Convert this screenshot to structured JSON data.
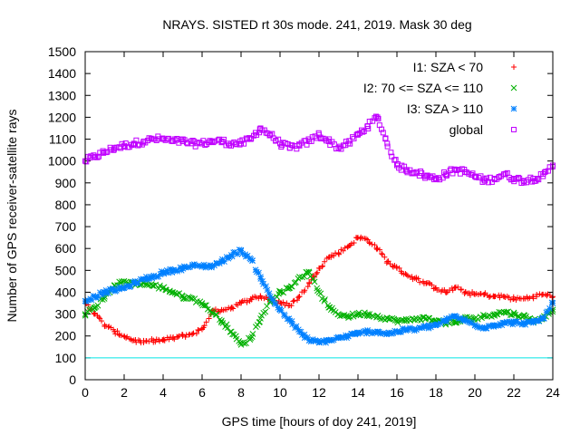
{
  "chart_data": {
    "type": "scatter",
    "title": "NRAYS. SISTED rt 30s mode. 241, 2019. Mask 30 deg",
    "xlabel": "GPS time [hours of doy 241, 2019]",
    "ylabel": "Number of GPS receiver-satellite rays",
    "xlim": [
      0,
      24
    ],
    "ylim": [
      0,
      1500
    ],
    "xticks": [
      0,
      2,
      4,
      6,
      8,
      10,
      12,
      14,
      16,
      18,
      20,
      22,
      24
    ],
    "yticks": [
      0,
      100,
      200,
      300,
      400,
      500,
      600,
      700,
      800,
      900,
      1000,
      1100,
      1200,
      1300,
      1400,
      1500
    ],
    "reference_line": {
      "y": 100,
      "color": "#00e5e5"
    },
    "legend_position": "top-right",
    "series": [
      {
        "name": "I1: SZA < 70",
        "color": "#ff0000",
        "marker": "+",
        "x": [
          0,
          0.5,
          1,
          1.5,
          2,
          2.5,
          3,
          3.5,
          4,
          4.5,
          5,
          5.5,
          6,
          6.5,
          7,
          7.5,
          8,
          8.5,
          9,
          9.5,
          10,
          10.5,
          11,
          11.5,
          12,
          12.5,
          13,
          13.5,
          14,
          14.5,
          15,
          15.5,
          16,
          16.5,
          17,
          17.5,
          18,
          18.5,
          19,
          19.5,
          20,
          20.5,
          21,
          21.5,
          22,
          22.5,
          23,
          23.5,
          24
        ],
        "y": [
          360,
          300,
          250,
          220,
          200,
          180,
          170,
          180,
          180,
          190,
          200,
          210,
          230,
          310,
          320,
          330,
          350,
          370,
          380,
          370,
          350,
          340,
          380,
          440,
          510,
          560,
          580,
          610,
          650,
          640,
          600,
          540,
          510,
          480,
          460,
          440,
          420,
          400,
          420,
          400,
          390,
          390,
          380,
          380,
          370,
          370,
          380,
          390,
          380
        ]
      },
      {
        "name": "I2: 70 <= SZA <= 110",
        "color": "#00b000",
        "marker": "x",
        "x": [
          0,
          0.5,
          1,
          1.5,
          2,
          2.5,
          3,
          3.5,
          4,
          4.5,
          5,
          5.5,
          6,
          6.5,
          7,
          7.5,
          8,
          8.5,
          9,
          9.5,
          10,
          10.5,
          11,
          11.5,
          12,
          12.5,
          13,
          13.5,
          14,
          14.5,
          15,
          15.5,
          16,
          16.5,
          17,
          17.5,
          18,
          18.5,
          19,
          19.5,
          20,
          20.5,
          21,
          21.5,
          22,
          22.5,
          23,
          23.5,
          24
        ],
        "y": [
          300,
          330,
          380,
          430,
          450,
          440,
          440,
          430,
          420,
          400,
          380,
          370,
          350,
          310,
          270,
          220,
          160,
          190,
          280,
          360,
          400,
          420,
          470,
          490,
          400,
          330,
          300,
          290,
          300,
          300,
          290,
          280,
          270,
          270,
          280,
          280,
          270,
          260,
          260,
          280,
          280,
          290,
          300,
          310,
          300,
          290,
          270,
          280,
          320
        ]
      },
      {
        "name": "I3: SZA > 110",
        "color": "#0080ff",
        "marker": "*",
        "x": [
          0,
          0.5,
          1,
          1.5,
          2,
          2.5,
          3,
          3.5,
          4,
          4.5,
          5,
          5.5,
          6,
          6.5,
          7,
          7.5,
          8,
          8.5,
          9,
          9.5,
          10,
          10.5,
          11,
          11.5,
          12,
          12.5,
          13,
          13.5,
          14,
          14.5,
          15,
          15.5,
          16,
          16.5,
          17,
          17.5,
          18,
          18.5,
          19,
          19.5,
          20,
          20.5,
          21,
          21.5,
          22,
          22.5,
          23,
          23.5,
          24
        ],
        "y": [
          360,
          380,
          400,
          410,
          420,
          440,
          460,
          470,
          490,
          500,
          510,
          520,
          520,
          520,
          540,
          570,
          590,
          550,
          470,
          380,
          320,
          270,
          220,
          180,
          170,
          180,
          190,
          200,
          210,
          220,
          220,
          210,
          220,
          230,
          230,
          240,
          250,
          270,
          290,
          270,
          250,
          240,
          250,
          260,
          260,
          260,
          260,
          280,
          350
        ]
      },
      {
        "name": "global",
        "color": "#c000ff",
        "marker": "square",
        "x": [
          0,
          0.5,
          1,
          1.5,
          2,
          2.5,
          3,
          3.5,
          4,
          4.5,
          5,
          5.5,
          6,
          6.5,
          7,
          7.5,
          8,
          8.5,
          9,
          9.5,
          10,
          10.5,
          11,
          11.5,
          12,
          12.5,
          13,
          13.5,
          14,
          14.5,
          15,
          15.5,
          16,
          16.5,
          17,
          17.5,
          18,
          18.5,
          19,
          19.5,
          20,
          20.5,
          21,
          21.5,
          22,
          22.5,
          23,
          23.5,
          24
        ],
        "y": [
          1000,
          1020,
          1040,
          1060,
          1070,
          1080,
          1090,
          1100,
          1100,
          1090,
          1090,
          1080,
          1080,
          1090,
          1090,
          1080,
          1080,
          1100,
          1150,
          1120,
          1080,
          1060,
          1070,
          1090,
          1120,
          1090,
          1060,
          1080,
          1120,
          1160,
          1200,
          1080,
          980,
          960,
          950,
          930,
          920,
          940,
          960,
          950,
          930,
          910,
          920,
          940,
          920,
          910,
          920,
          930,
          980
        ]
      }
    ]
  }
}
